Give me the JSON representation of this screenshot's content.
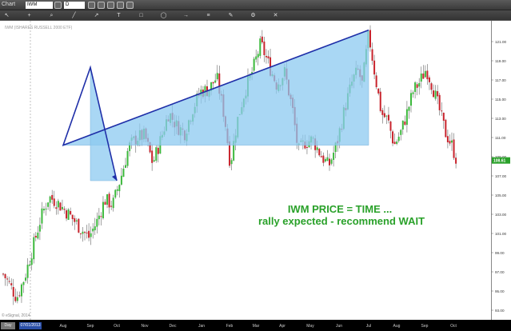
{
  "window": {
    "title": "Chart",
    "symbol": "IWM",
    "period": "D"
  },
  "toolbar_icons": [
    "cursor-icon",
    "crosshair-icon",
    "zoom-icon",
    "line-icon",
    "trend-icon",
    "text-icon",
    "box-icon",
    "ellipse-icon",
    "arrow-icon",
    "fib-icon",
    "pencil-icon",
    "settings-icon",
    "delete-icon"
  ],
  "info_line": "IWM (ISHARES RUSSELL 2000 ETF)",
  "watermark": "© eSignal, 2014",
  "crosshair_date": "07/01/2013",
  "period_label": "Day",
  "annotation": {
    "line1": "IWM PRICE = TIME ...",
    "line2": "rally expected - recommend WAIT",
    "color": "#2aa12a"
  },
  "current_price": "108.61",
  "colors": {
    "up": "#3cb83c",
    "down": "#c8232c",
    "pattern_line": "#1f2fa8",
    "pattern_fill": "#8ccaf0",
    "price_marker": "#2aa12a"
  },
  "chart_data": {
    "type": "candlestick",
    "x_tick_labels": [
      "Aug",
      "Sep",
      "Oct",
      "Nov",
      "Dec",
      "Jan",
      "Feb",
      "Mar",
      "Apr",
      "May",
      "Jun",
      "Jul",
      "Aug",
      "Sep",
      "Oct"
    ],
    "y_tick_labels": [
      "93.00",
      "95.00",
      "97.00",
      "99.00",
      "101.00",
      "103.00",
      "105.00",
      "107.00",
      "109.00",
      "111.00",
      "113.00",
      "115.00",
      "117.00",
      "119.00",
      "121.00"
    ],
    "ylim": [
      93.0,
      122.5
    ],
    "price_path": [
      [
        0,
        97.2
      ],
      [
        10,
        95.8
      ],
      [
        20,
        94.3
      ],
      [
        30,
        96.5
      ],
      [
        40,
        99.5
      ],
      [
        50,
        102.6
      ],
      [
        60,
        104.8
      ],
      [
        70,
        104.3
      ],
      [
        85,
        103.0
      ],
      [
        100,
        101.5
      ],
      [
        110,
        100.6
      ],
      [
        120,
        102.2
      ],
      [
        130,
        104.5
      ],
      [
        140,
        104.0
      ],
      [
        150,
        106.8
      ],
      [
        160,
        110.0
      ],
      [
        170,
        111.0
      ],
      [
        180,
        111.2
      ],
      [
        190,
        108.3
      ],
      [
        200,
        110.8
      ],
      [
        210,
        113.6
      ],
      [
        220,
        112.2
      ],
      [
        230,
        111.5
      ],
      [
        240,
        114.0
      ],
      [
        250,
        115.8
      ],
      [
        260,
        116.0
      ],
      [
        270,
        117.3
      ],
      [
        280,
        113.0
      ],
      [
        287,
        108.2
      ],
      [
        295,
        112.5
      ],
      [
        305,
        115.8
      ],
      [
        315,
        118.0
      ],
      [
        325,
        120.8
      ],
      [
        335,
        118.6
      ],
      [
        345,
        116.5
      ],
      [
        355,
        117.8
      ],
      [
        365,
        113.8
      ],
      [
        372,
        109.5
      ],
      [
        380,
        110.5
      ],
      [
        390,
        110.8
      ],
      [
        400,
        109.2
      ],
      [
        410,
        108.0
      ],
      [
        420,
        110.3
      ],
      [
        430,
        114.0
      ],
      [
        440,
        117.0
      ],
      [
        447,
        118.0
      ],
      [
        452,
        116.5
      ],
      [
        460,
        121.8
      ],
      [
        468,
        117.5
      ],
      [
        476,
        113.5
      ],
      [
        484,
        112.8
      ],
      [
        492,
        110.2
      ],
      [
        500,
        111.5
      ],
      [
        508,
        113.6
      ],
      [
        516,
        115.9
      ],
      [
        524,
        116.8
      ],
      [
        532,
        118.2
      ],
      [
        540,
        116.3
      ],
      [
        548,
        114.0
      ],
      [
        556,
        111.5
      ],
      [
        564,
        110.2
      ],
      [
        570,
        108.6
      ]
    ],
    "series": [
      {
        "name": "pattern",
        "points": [
          {
            "date": "Jul",
            "price": 122.2
          },
          {
            "date": "Aug",
            "price": 110.2
          },
          {
            "date": "Sep",
            "price": 118.3
          },
          {
            "date": "Oct",
            "price": 106.5
          }
        ]
      }
    ],
    "grid": false
  }
}
